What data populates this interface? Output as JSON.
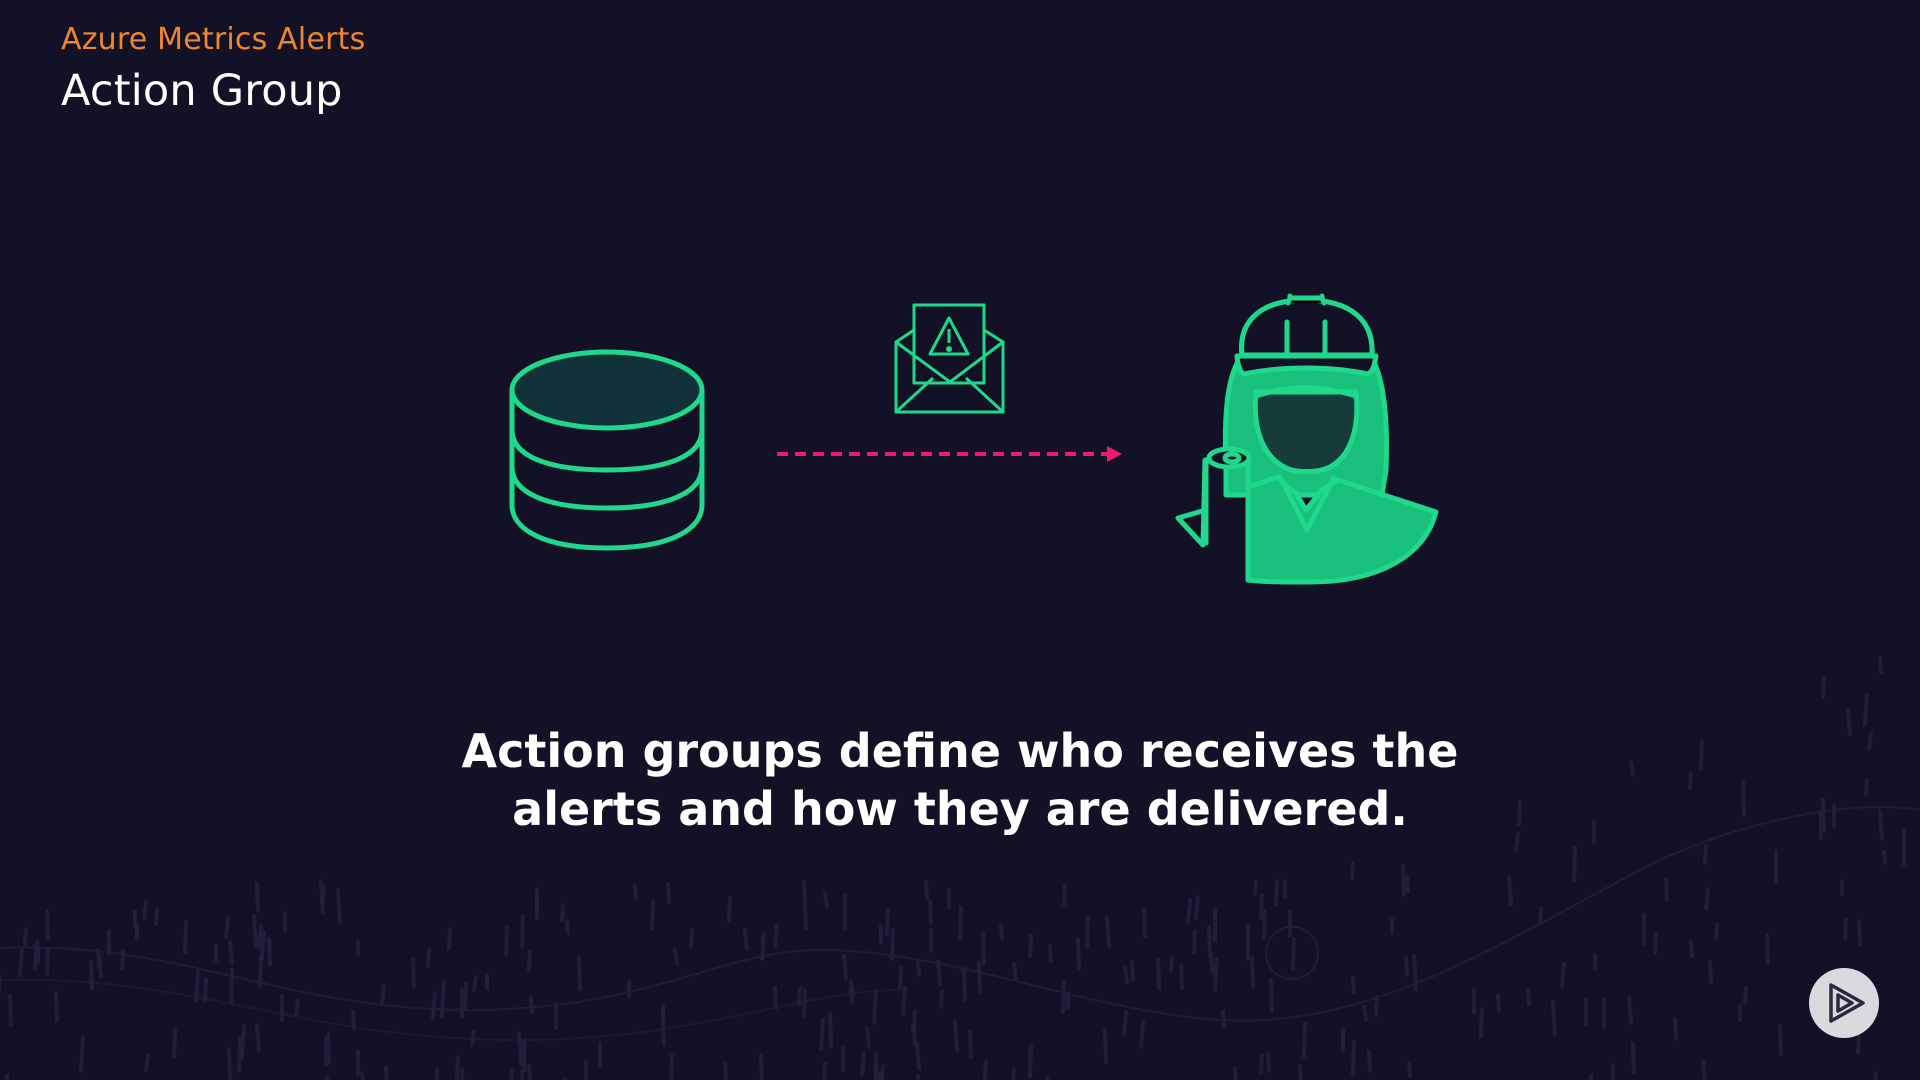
{
  "header": {
    "subtitle": "Azure Metrics Alerts",
    "title": "Action Group"
  },
  "diagram": {
    "source_icon": "database-icon",
    "message_icon": "alert-envelope-icon",
    "connector": "dashed-arrow",
    "target_icon": "engineer-person-icon"
  },
  "caption": {
    "line1": "Action groups define who receives the",
    "line2": "alerts and how they are delivered."
  },
  "colors": {
    "background": "#131125",
    "accent_orange": "#f0862a",
    "icon_green": "#1fd88b",
    "arrow_pink": "#ee1a6e",
    "text": "#ffffff"
  },
  "controls": {
    "play_icon": "play-logo-icon"
  }
}
